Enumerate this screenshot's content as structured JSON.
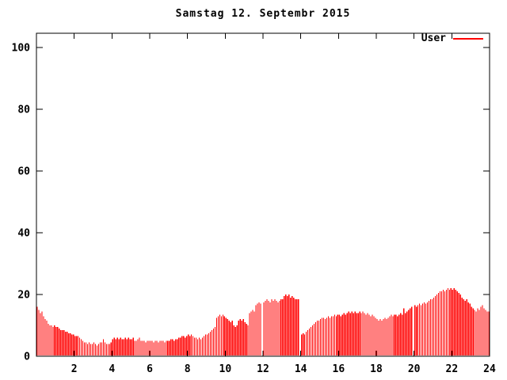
{
  "chart_data": {
    "type": "bar",
    "title": "Samstag 12. Septembr 2015",
    "legend": {
      "label": "User",
      "color": "#ff0000",
      "position": "top-right-inside"
    },
    "xlabel": "",
    "ylabel": "",
    "x_unit": "hour-of-day",
    "sample_interval_minutes": 5,
    "xlim": [
      0,
      24
    ],
    "ylim": [
      0,
      104.6
    ],
    "x_ticks": [
      2,
      4,
      6,
      8,
      10,
      12,
      14,
      16,
      18,
      20,
      22,
      24
    ],
    "y_ticks": [
      0,
      20,
      40,
      60,
      80,
      100
    ],
    "grid": "off",
    "bar_color": "#ff0000",
    "axis_color": "#000000",
    "background_color": "#ffffff",
    "missing_value": 0,
    "values": [
      16,
      15,
      14,
      14.5,
      13,
      12,
      11.5,
      10.5,
      10,
      10,
      9.5,
      10,
      9.5,
      9.5,
      9,
      8.5,
      8.5,
      8.5,
      8,
      8,
      7.5,
      7.5,
      7,
      7,
      6.5,
      6.5,
      6.5,
      6,
      5.5,
      5,
      4.5,
      4.5,
      4,
      4.5,
      4,
      4,
      4.5,
      4,
      3.5,
      4,
      4.5,
      4.5,
      5.5,
      4.5,
      4,
      4,
      4,
      4.5,
      5.5,
      6,
      5.5,
      6,
      5.5,
      6,
      5.5,
      5.5,
      6,
      5.5,
      6,
      5.5,
      5.5,
      6,
      5,
      5,
      5.5,
      6,
      5,
      5,
      5,
      4.5,
      5,
      5,
      5,
      5,
      4.5,
      5,
      5,
      4.5,
      5,
      5,
      5,
      4.5,
      5,
      5,
      5,
      5.5,
      5.5,
      5,
      5.5,
      5.5,
      6,
      6,
      6.5,
      6.5,
      6,
      6.5,
      7,
      6.5,
      7,
      6.5,
      6,
      6,
      5.5,
      6,
      5.5,
      6,
      6.5,
      7,
      7,
      7.5,
      8,
      8.5,
      9,
      9.5,
      12.5,
      13,
      13.5,
      13,
      13.5,
      13,
      12.5,
      12,
      11.5,
      11,
      11.5,
      10,
      9.5,
      10,
      11.5,
      12,
      11.5,
      12,
      11,
      10.5,
      10,
      14,
      14.5,
      15,
      14.5,
      16.5,
      17,
      17.5,
      17,
      0,
      17.5,
      18,
      18.5,
      18,
      17.5,
      18.5,
      18,
      18.5,
      18,
      17.5,
      18,
      18.5,
      18.5,
      19.5,
      20,
      19.5,
      20,
      19,
      19.5,
      19,
      18.5,
      18.5,
      18.5,
      0,
      7,
      7.5,
      7,
      8,
      8.5,
      9,
      9.5,
      10,
      10.5,
      11,
      11.5,
      11.5,
      12,
      12.5,
      12.5,
      12,
      12.5,
      13,
      12.5,
      13,
      13,
      13.5,
      13,
      13.5,
      13.5,
      13,
      13.5,
      14,
      13.5,
      14,
      14.5,
      14,
      14.5,
      14,
      14.5,
      14,
      14,
      14.5,
      14,
      14.5,
      14,
      13.5,
      14,
      13.5,
      13,
      13.5,
      13,
      12.5,
      12,
      11.5,
      12,
      11.5,
      12,
      12.5,
      12,
      12.5,
      13,
      13.5,
      13,
      13.5,
      13.5,
      13,
      13.5,
      14,
      13.5,
      15.5,
      14,
      14.5,
      15,
      15.5,
      16,
      0,
      16.5,
      16,
      16.5,
      17,
      16.5,
      17,
      17.5,
      17,
      17.5,
      18,
      18.5,
      18.5,
      19,
      19.5,
      20,
      20.5,
      21,
      21,
      21.5,
      21,
      21.5,
      22,
      21.5,
      22,
      21.5,
      22,
      21.5,
      21,
      20.5,
      20,
      19,
      18.5,
      18,
      18.5,
      17.5,
      17,
      16,
      15.5,
      15,
      14.5,
      15.5,
      15,
      16,
      16.5,
      15.5,
      15,
      14.5,
      14.5
    ]
  }
}
